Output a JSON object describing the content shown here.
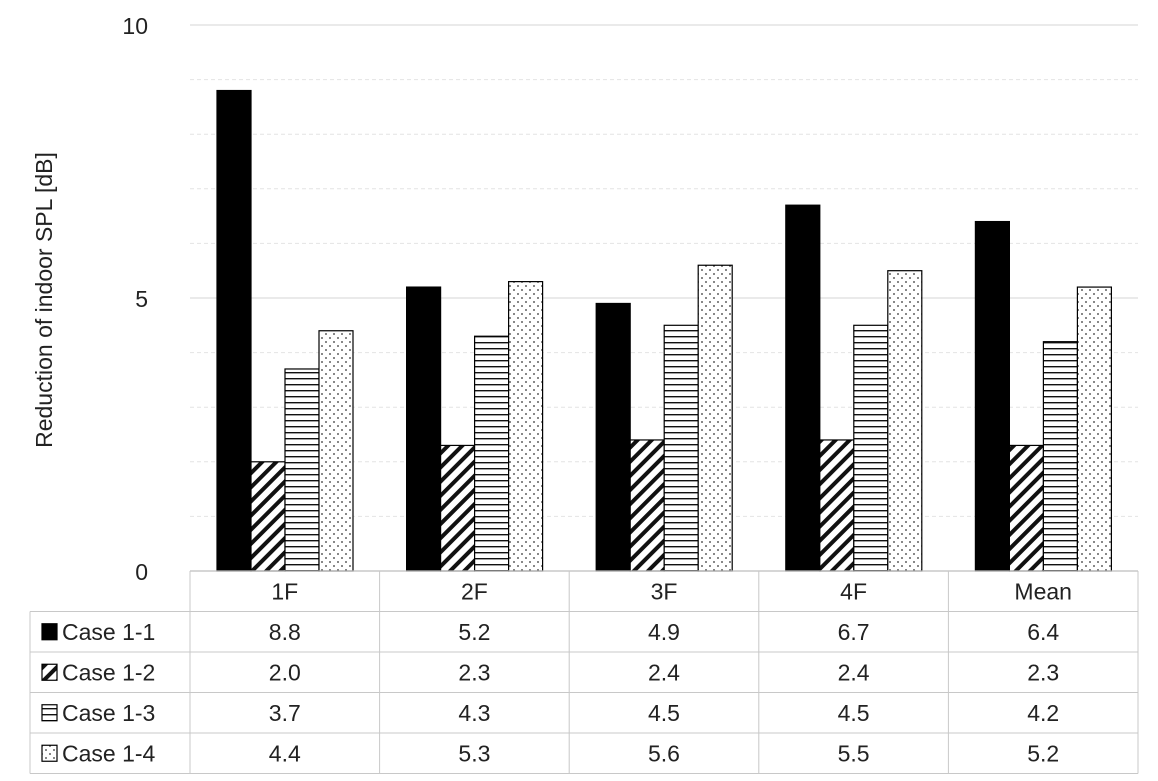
{
  "chart_data": {
    "type": "bar",
    "ylabel": "Reduction of indoor SPL [dB]",
    "ylim": [
      0,
      10
    ],
    "yticks": [
      "0",
      "5",
      "10"
    ],
    "grid": true,
    "categories": [
      "1F",
      "2F",
      "3F",
      "4F",
      "Mean"
    ],
    "series": [
      {
        "name": "Case 1-1",
        "pattern": "solid",
        "values": [
          8.8,
          5.2,
          4.9,
          6.7,
          6.4
        ],
        "labels": [
          "8.8",
          "5.2",
          "4.9",
          "6.7",
          "6.4"
        ]
      },
      {
        "name": "Case 1-2",
        "pattern": "diagonal-hatch",
        "values": [
          2.0,
          2.3,
          2.4,
          2.4,
          2.3
        ],
        "labels": [
          "2.0",
          "2.3",
          "2.4",
          "2.4",
          "2.3"
        ]
      },
      {
        "name": "Case 1-3",
        "pattern": "horizontal-lines",
        "values": [
          3.7,
          4.3,
          4.5,
          4.5,
          4.2
        ],
        "labels": [
          "3.7",
          "4.3",
          "4.5",
          "4.5",
          "4.2"
        ]
      },
      {
        "name": "Case 1-4",
        "pattern": "dots",
        "values": [
          4.4,
          5.3,
          5.6,
          5.5,
          5.2
        ],
        "labels": [
          "4.4",
          "5.3",
          "5.6",
          "5.5",
          "5.2"
        ]
      }
    ],
    "legend": "data-table-left"
  }
}
